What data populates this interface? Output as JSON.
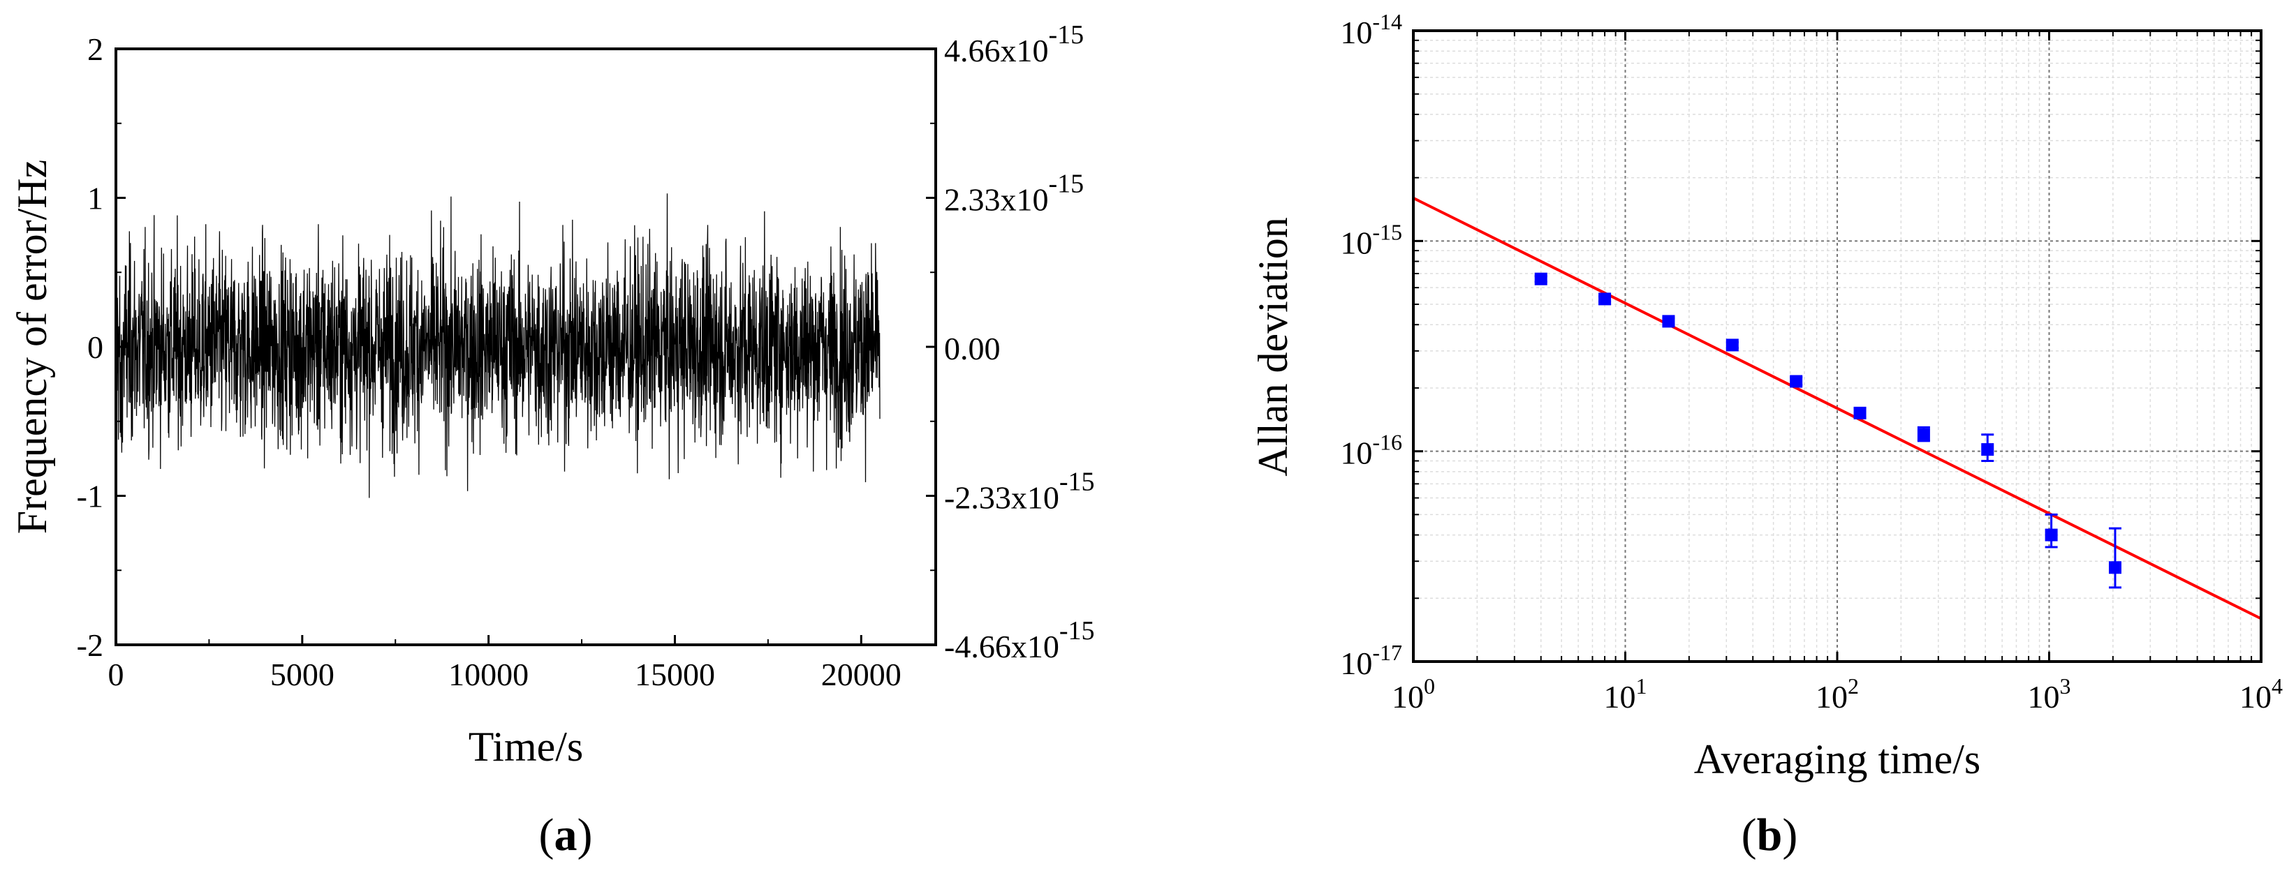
{
  "chart_data": [
    {
      "type": "line",
      "panel_label": "(a)",
      "panel_letter": "a",
      "xlabel": "Time/s",
      "ylabel": "Frequency of error/Hz",
      "xlim": [
        0,
        22000
      ],
      "ylim": [
        -2,
        2
      ],
      "x_ticks": [
        0,
        5000,
        10000,
        15000,
        20000
      ],
      "x_tick_labels": [
        "0",
        "5000",
        "10000",
        "15000",
        "20000"
      ],
      "y_ticks": [
        -2,
        -1,
        0,
        1,
        2
      ],
      "y_tick_labels": [
        "-2",
        "-1",
        "0",
        "1",
        "2"
      ],
      "y2_ticks": [
        -2,
        -1,
        0,
        1,
        2
      ],
      "y2_tick_labels": [
        {
          "mant": "-4.66x10",
          "exp": "-15"
        },
        {
          "mant": "-2.33x10",
          "exp": "-15"
        },
        {
          "mant": "0.00",
          "exp": ""
        },
        {
          "mant": "2.33x10",
          "exp": "-15"
        },
        {
          "mant": "4.66x10",
          "exp": "-15"
        }
      ],
      "series": [
        {
          "name": "frequency error",
          "x_range": [
            0,
            20500
          ],
          "approx_std": 0.32,
          "approx_min": -1.1,
          "approx_max": 1.05,
          "color": "#000000"
        }
      ]
    },
    {
      "type": "scatter",
      "panel_label": "(b)",
      "panel_letter": "b",
      "xlabel": "Averaging time/s",
      "ylabel": "Allan deviation",
      "xscale": "log",
      "yscale": "log",
      "xlim": [
        1,
        10000
      ],
      "ylim": [
        1e-17,
        1e-14
      ],
      "grid": true,
      "x_tick_labels": [
        {
          "base": "10",
          "exp": "0"
        },
        {
          "base": "10",
          "exp": "1"
        },
        {
          "base": "10",
          "exp": "2"
        },
        {
          "base": "10",
          "exp": "3"
        },
        {
          "base": "10",
          "exp": "4"
        }
      ],
      "y_tick_labels": [
        {
          "base": "10",
          "exp": "-17"
        },
        {
          "base": "10",
          "exp": "-16"
        },
        {
          "base": "10",
          "exp": "-15"
        },
        {
          "base": "10",
          "exp": "-14"
        }
      ],
      "series": [
        {
          "name": "Allan deviation",
          "color": "#0000ff",
          "x": [
            4,
            8,
            16,
            32,
            64,
            128,
            256,
            512,
            1024,
            2048
          ],
          "y": [
            6.6e-16,
            5.3e-16,
            4.15e-16,
            3.2e-16,
            2.15e-16,
            1.52e-16,
            1.2e-16,
            1.02e-16,
            4e-17,
            2.8e-17
          ],
          "err_low": [
            6.4e-16,
            5.15e-16,
            4e-16,
            3.1e-16,
            2.07e-16,
            1.45e-16,
            1.12e-16,
            9e-17,
            3.5e-17,
            2.25e-17
          ],
          "err_high": [
            6.8e-16,
            5.45e-16,
            4.3e-16,
            3.3e-16,
            2.25e-16,
            1.6e-16,
            1.3e-16,
            1.2e-16,
            5e-17,
            4.3e-17
          ]
        },
        {
          "name": "fit",
          "type": "line",
          "color": "#ff0000",
          "x": [
            1,
            10000
          ],
          "y": [
            1.6e-15,
            1.6e-17
          ]
        }
      ]
    }
  ]
}
